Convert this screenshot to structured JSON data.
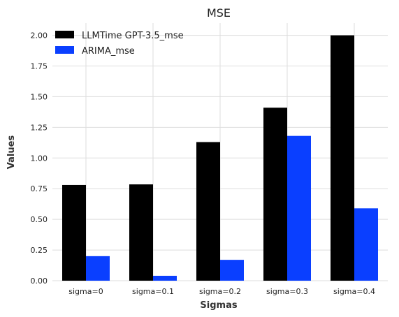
{
  "chart_data": {
    "type": "bar",
    "title": "MSE",
    "xlabel": "Sigmas",
    "ylabel": "Values",
    "categories": [
      "sigma=0",
      "sigma=0.1",
      "sigma=0.2",
      "sigma=0.3",
      "sigma=0.4"
    ],
    "series": [
      {
        "name": "LLMTime GPT-3.5_mse",
        "color": "#000000",
        "values": [
          0.78,
          0.785,
          1.13,
          1.41,
          2.0
        ]
      },
      {
        "name": "ARIMA_mse",
        "color": "#0a3fff",
        "values": [
          0.2,
          0.04,
          0.17,
          1.18,
          0.59
        ]
      }
    ],
    "ylim": [
      0,
      2.1
    ],
    "yticks": [
      "0.00",
      "0.25",
      "0.50",
      "0.75",
      "1.00",
      "1.25",
      "1.50",
      "1.75",
      "2.00"
    ],
    "grid": true,
    "legend": "top-left"
  }
}
